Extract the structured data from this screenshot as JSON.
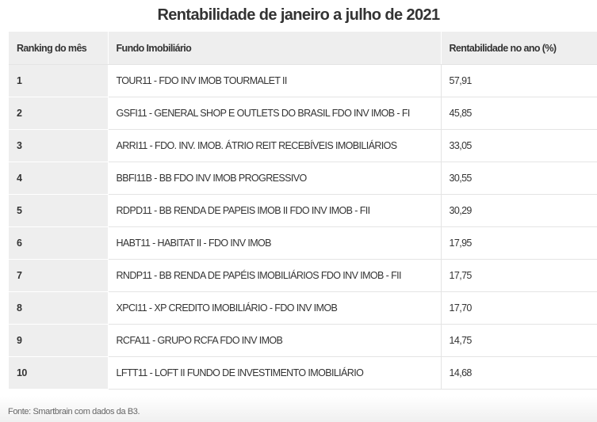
{
  "title": "Rentabilidade de janeiro a julho de 2021",
  "table": {
    "headers": [
      "Ranking do mês",
      "Fundo Imobiliário",
      "Rentabilidade no ano (%)"
    ],
    "rows": [
      [
        "1",
        "TOUR11 - FDO INV IMOB TOURMALET II",
        "57,91"
      ],
      [
        "2",
        "GSFI11 - GENERAL SHOP E OUTLETS DO BRASIL FDO INV IMOB - FI",
        "45,85"
      ],
      [
        "3",
        "ARRI11 - FDO. INV. IMOB. ÁTRIO REIT RECEBÍVEIS IMOBILIÁRIOS",
        "33,05"
      ],
      [
        "4",
        "BBFI11B - BB FDO INV IMOB PROGRESSIVO",
        "30,55"
      ],
      [
        "5",
        "RDPD11 - BB RENDA DE PAPEIS IMOB II FDO INV IMOB - FII",
        "30,29"
      ],
      [
        "6",
        "HABT11 - HABITAT II - FDO INV IMOB",
        "17,95"
      ],
      [
        "7",
        "RNDP11 - BB RENDA DE PAPÉIS IMOBILIÁRIOS FDO INV IMOB - FII",
        "17,75"
      ],
      [
        "8",
        "XPCI11 - XP CREDITO IMOBILIÁRIO - FDO INV IMOB",
        "17,70"
      ],
      [
        "9",
        "RCFA11 - GRUPO RCFA FDO INV IMOB",
        "14,75"
      ],
      [
        "10",
        "LFTT11 - LOFT II FUNDO DE INVESTIMENTO IMOBILIÁRIO",
        "14,68"
      ]
    ]
  },
  "footer": "Fonte: Smartbrain com dados da B3."
}
